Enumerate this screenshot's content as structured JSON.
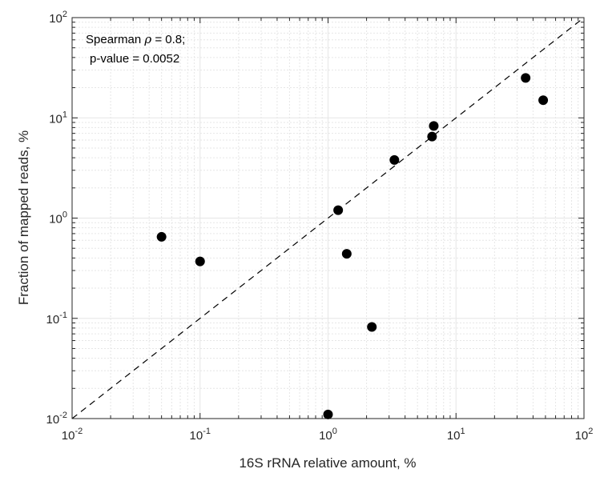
{
  "chart_data": {
    "type": "scatter",
    "title": "",
    "xlabel": "16S rRNA relative amount, %",
    "ylabel": "Fraction of mapped reads, %",
    "xscale": "log",
    "yscale": "log",
    "xlim": [
      0.01,
      100
    ],
    "ylim": [
      0.01,
      100
    ],
    "x_ticks": [
      {
        "base": "10",
        "exp": "-2"
      },
      {
        "base": "10",
        "exp": "-1"
      },
      {
        "base": "10",
        "exp": "0"
      },
      {
        "base": "10",
        "exp": "1"
      },
      {
        "base": "10",
        "exp": "2"
      }
    ],
    "y_ticks": [
      {
        "base": "10",
        "exp": "-2"
      },
      {
        "base": "10",
        "exp": "-1"
      },
      {
        "base": "10",
        "exp": "0"
      },
      {
        "base": "10",
        "exp": "1"
      },
      {
        "base": "10",
        "exp": "2"
      }
    ],
    "grid": true,
    "minor_grid": true,
    "points": [
      {
        "x": 0.05,
        "y": 0.65
      },
      {
        "x": 0.1,
        "y": 0.37
      },
      {
        "x": 1.0,
        "y": 0.011
      },
      {
        "x": 1.2,
        "y": 1.2
      },
      {
        "x": 1.4,
        "y": 0.44
      },
      {
        "x": 2.2,
        "y": 0.082
      },
      {
        "x": 3.3,
        "y": 3.8
      },
      {
        "x": 6.5,
        "y": 6.5
      },
      {
        "x": 6.7,
        "y": 8.3
      },
      {
        "x": 35,
        "y": 25
      },
      {
        "x": 48,
        "y": 15
      }
    ],
    "reference_line": {
      "style": "dashed",
      "x": [
        0.01,
        100
      ],
      "y": [
        0.01,
        100
      ]
    },
    "annotation": {
      "line1_prefix": "Spearman ",
      "line1_symbol": "ρ",
      "line1_suffix": " = 0.8;",
      "line2": "p-value = 0.0052"
    },
    "colors": {
      "points": "#000000",
      "axes": "#262626",
      "grid": "#e6e6e6"
    }
  }
}
